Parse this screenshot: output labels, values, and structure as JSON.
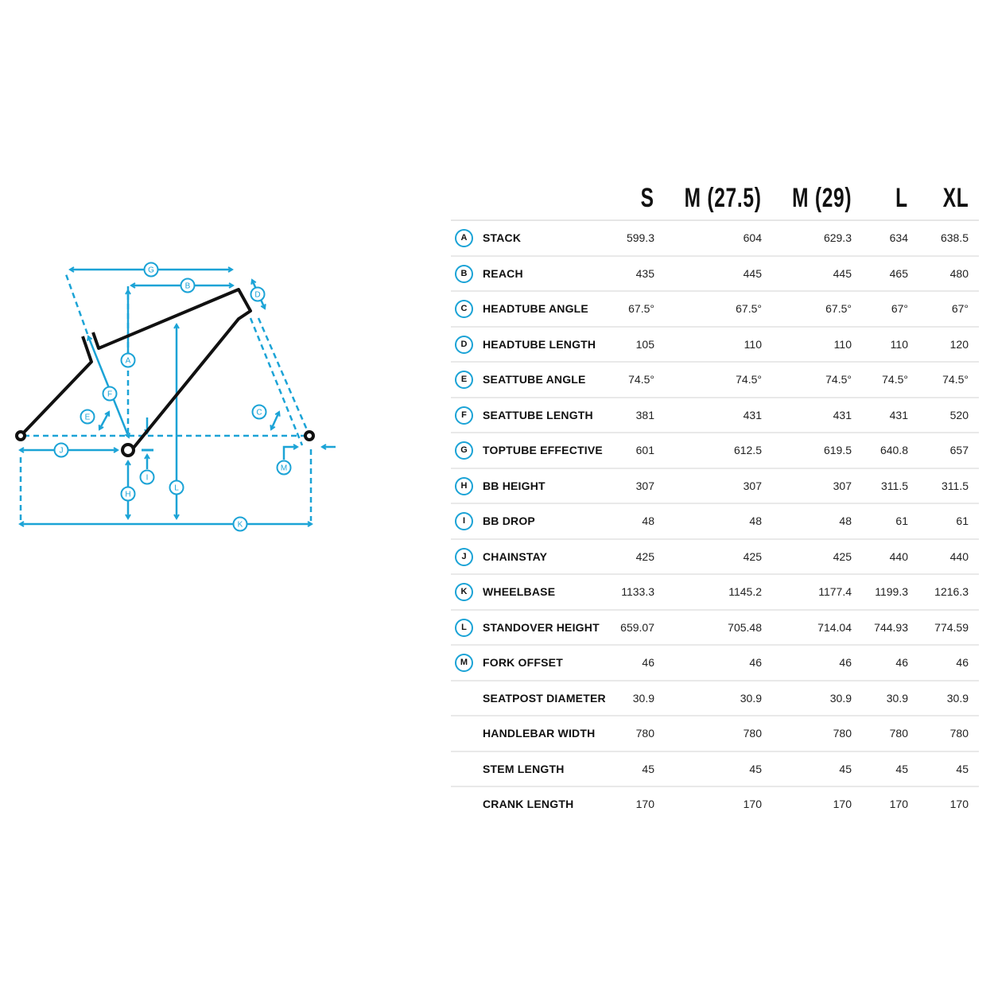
{
  "accent_color": "#1ba3d6",
  "frame_color": "#111111",
  "diagram": {
    "labels": [
      "A",
      "B",
      "C",
      "D",
      "E",
      "F",
      "G",
      "H",
      "I",
      "J",
      "K",
      "L",
      "M"
    ]
  },
  "table": {
    "sizes": [
      "S",
      "M (27.5)",
      "M (29)",
      "L",
      "XL"
    ],
    "rows": [
      {
        "key": "A",
        "label": "STACK",
        "values": [
          "599.3",
          "604",
          "629.3",
          "634",
          "638.5"
        ]
      },
      {
        "key": "B",
        "label": "REACH",
        "values": [
          "435",
          "445",
          "445",
          "465",
          "480"
        ]
      },
      {
        "key": "C",
        "label": "HEADTUBE ANGLE",
        "values": [
          "67.5°",
          "67.5°",
          "67.5°",
          "67°",
          "67°"
        ]
      },
      {
        "key": "D",
        "label": "HEADTUBE LENGTH",
        "values": [
          "105",
          "110",
          "110",
          "110",
          "120"
        ]
      },
      {
        "key": "E",
        "label": "SEATTUBE ANGLE",
        "values": [
          "74.5°",
          "74.5°",
          "74.5°",
          "74.5°",
          "74.5°"
        ]
      },
      {
        "key": "F",
        "label": "SEATTUBE LENGTH",
        "values": [
          "381",
          "431",
          "431",
          "431",
          "520"
        ]
      },
      {
        "key": "G",
        "label": "TOPTUBE EFFECTIVE",
        "values": [
          "601",
          "612.5",
          "619.5",
          "640.8",
          "657"
        ]
      },
      {
        "key": "H",
        "label": "BB HEIGHT",
        "values": [
          "307",
          "307",
          "307",
          "311.5",
          "311.5"
        ]
      },
      {
        "key": "I",
        "label": "BB DROP",
        "values": [
          "48",
          "48",
          "48",
          "61",
          "61"
        ]
      },
      {
        "key": "J",
        "label": "CHAINSTAY",
        "values": [
          "425",
          "425",
          "425",
          "440",
          "440"
        ]
      },
      {
        "key": "K",
        "label": "WHEELBASE",
        "values": [
          "1133.3",
          "1145.2",
          "1177.4",
          "1199.3",
          "1216.3"
        ]
      },
      {
        "key": "L",
        "label": "STANDOVER HEIGHT",
        "values": [
          "659.07",
          "705.48",
          "714.04",
          "744.93",
          "774.59"
        ]
      },
      {
        "key": "M",
        "label": "FORK OFFSET",
        "values": [
          "46",
          "46",
          "46",
          "46",
          "46"
        ]
      },
      {
        "key": "",
        "label": "SEATPOST DIAMETER",
        "values": [
          "30.9",
          "30.9",
          "30.9",
          "30.9",
          "30.9"
        ]
      },
      {
        "key": "",
        "label": "HANDLEBAR WIDTH",
        "values": [
          "780",
          "780",
          "780",
          "780",
          "780"
        ]
      },
      {
        "key": "",
        "label": "STEM LENGTH",
        "values": [
          "45",
          "45",
          "45",
          "45",
          "45"
        ]
      },
      {
        "key": "",
        "label": "CRANK LENGTH",
        "values": [
          "170",
          "170",
          "170",
          "170",
          "170"
        ]
      }
    ]
  }
}
